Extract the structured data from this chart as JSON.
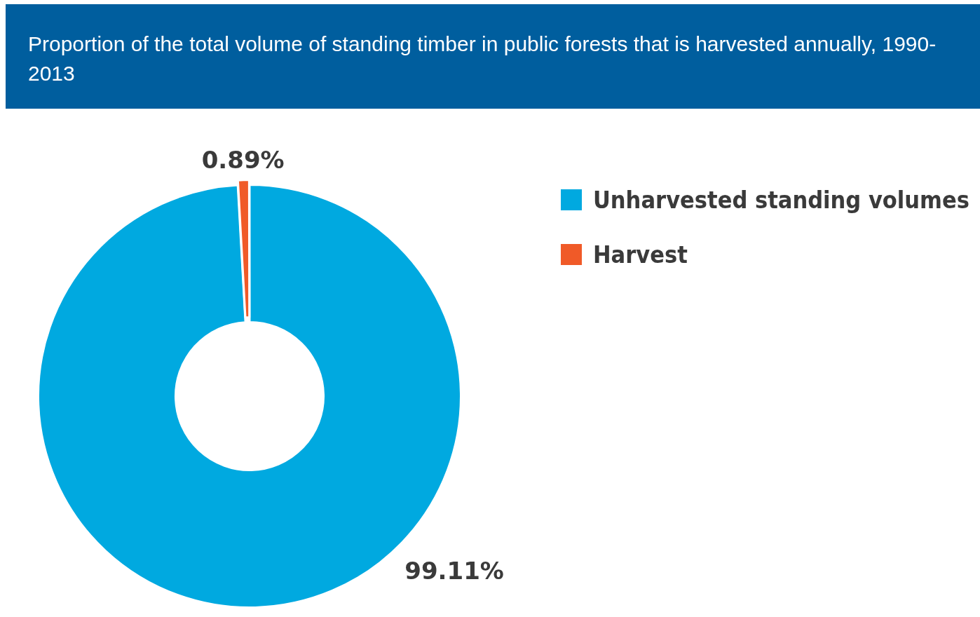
{
  "chart_data": {
    "type": "donut",
    "title": "Proportion of the total volume of standing timber in public forests that is harvested annually, 1990-2013",
    "categories": [
      "Unharvested standing volumes",
      "Harvest"
    ],
    "values": [
      99.11,
      0.89
    ],
    "colors": [
      "#00a9e0",
      "#f05a28"
    ],
    "value_labels": [
      "99.11%",
      "0.89%"
    ],
    "legend": "top right"
  }
}
